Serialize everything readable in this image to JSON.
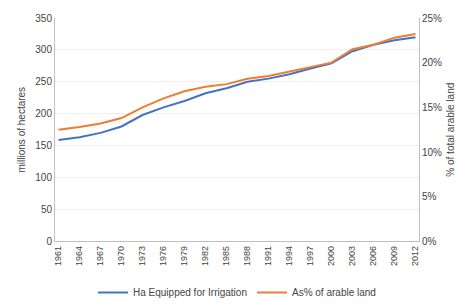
{
  "chart_data": {
    "type": "line",
    "x": [
      1961,
      1964,
      1967,
      1970,
      1973,
      1976,
      1979,
      1982,
      1985,
      1988,
      1991,
      1994,
      1997,
      2000,
      2003,
      2006,
      2009,
      2012
    ],
    "series": [
      {
        "name": "Ha Equipped for Irrigation",
        "color": "#4472C4",
        "values": [
          159,
          163,
          170,
          180,
          198,
          210,
          220,
          232,
          240,
          250,
          255,
          262,
          271,
          279,
          298,
          308,
          315,
          320
        ]
      },
      {
        "name": "As% of arable land",
        "color": "#ED7D31",
        "axis": "y2",
        "values": [
          12.5,
          12.8,
          13.2,
          13.8,
          15.0,
          16.0,
          16.8,
          17.3,
          17.6,
          18.2,
          18.5,
          19.0,
          19.5,
          20.0,
          21.5,
          22.0,
          22.8,
          23.2
        ]
      }
    ],
    "xlim": [
      1960.5,
      2012.5
    ],
    "xticks": [
      1961,
      1964,
      1967,
      1970,
      1973,
      1976,
      1979,
      1982,
      1985,
      1988,
      1991,
      1994,
      1997,
      2000,
      2003,
      2006,
      2009,
      2012
    ],
    "ylabel": "millions of hectares",
    "ylim": [
      0,
      350
    ],
    "yticks": [
      0,
      50,
      100,
      150,
      200,
      250,
      300,
      350
    ],
    "y2label": "% of total arable land",
    "y2lim": [
      0,
      25
    ],
    "y2ticks": [
      {
        "value": 0,
        "label": "0%"
      },
      {
        "value": 5,
        "label": "5%"
      },
      {
        "value": 10,
        "label": "10%"
      },
      {
        "value": 15,
        "label": "15%"
      },
      {
        "value": 20,
        "label": "20%"
      },
      {
        "value": 25,
        "label": "25%"
      }
    ],
    "grid": true,
    "legend": "bottom"
  }
}
